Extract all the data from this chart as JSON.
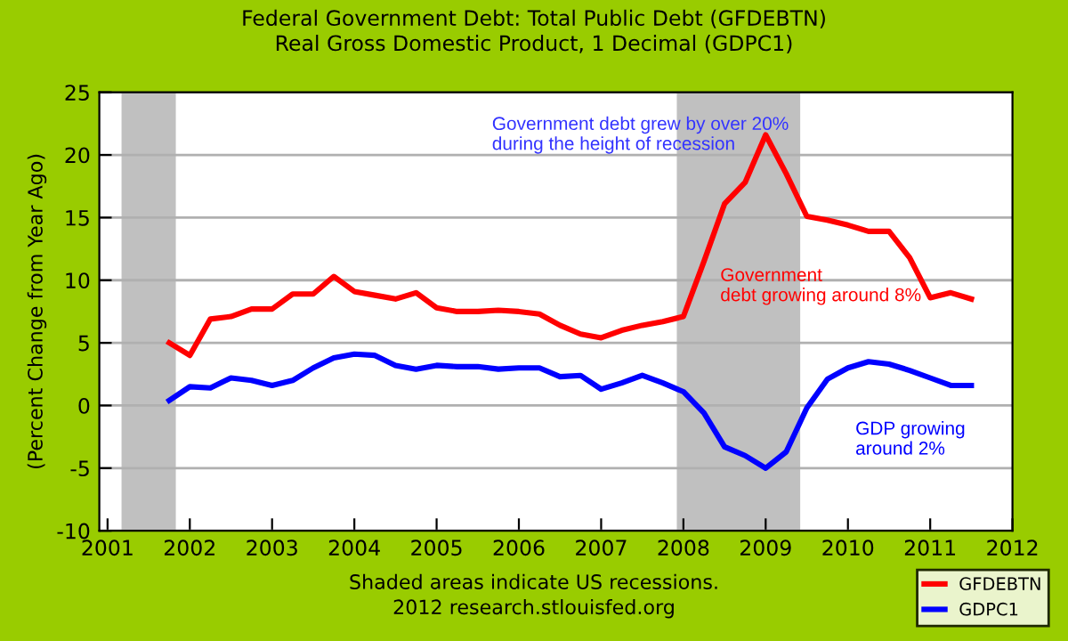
{
  "chart_data": {
    "type": "line",
    "title": "Federal Government Debt: Total Public Debt (GFDEBTN)\nReal Gross Domestic Product, 1 Decimal (GDPC1)",
    "ylabel": "(Percent Change from Year Ago)",
    "x": [
      2001.75,
      2002.0,
      2002.25,
      2002.5,
      2002.75,
      2003.0,
      2003.25,
      2003.5,
      2003.75,
      2004.0,
      2004.25,
      2004.5,
      2004.75,
      2005.0,
      2005.25,
      2005.5,
      2005.75,
      2006.0,
      2006.25,
      2006.5,
      2006.75,
      2007.0,
      2007.25,
      2007.5,
      2007.75,
      2008.0,
      2008.25,
      2008.5,
      2008.75,
      2009.0,
      2009.25,
      2009.5,
      2009.75,
      2010.0,
      2010.25,
      2010.5,
      2010.75,
      2011.0,
      2011.25,
      2011.5
    ],
    "series": [
      {
        "name": "GFDEBTN",
        "color": "#ff0000",
        "values": [
          5.0,
          4.0,
          6.9,
          7.1,
          7.7,
          7.7,
          8.9,
          8.9,
          10.3,
          9.1,
          8.8,
          8.5,
          9.0,
          7.8,
          7.5,
          7.5,
          7.6,
          7.5,
          7.3,
          6.4,
          5.7,
          5.4,
          6.0,
          6.4,
          6.7,
          7.1,
          11.5,
          16.1,
          17.8,
          21.6,
          18.5,
          15.1,
          14.8,
          14.4,
          13.9,
          13.9,
          11.8,
          8.6,
          9.0,
          8.5
        ]
      },
      {
        "name": "GDPC1",
        "color": "#0000ff",
        "values": [
          0.4,
          1.5,
          1.4,
          2.2,
          2.0,
          1.6,
          2.0,
          3.0,
          3.8,
          4.1,
          4.0,
          3.2,
          2.9,
          3.2,
          3.1,
          3.1,
          2.9,
          3.0,
          3.0,
          2.3,
          2.4,
          1.3,
          1.8,
          2.4,
          1.8,
          1.1,
          -0.6,
          -3.3,
          -4.0,
          -5.0,
          -3.7,
          -0.2,
          2.1,
          3.0,
          3.5,
          3.3,
          2.8,
          2.2,
          1.6,
          1.6
        ]
      }
    ],
    "xlim": [
      2000.9,
      2012
    ],
    "xticks": [
      2001,
      2002,
      2003,
      2004,
      2005,
      2006,
      2007,
      2008,
      2009,
      2010,
      2011,
      2012
    ],
    "ylim": [
      -10,
      25
    ],
    "yticks": [
      -10,
      -5,
      0,
      5,
      10,
      15,
      20,
      25
    ],
    "bands": [
      {
        "axis": "x",
        "from": 2001.17,
        "to": 2001.83,
        "color": "#c0c0c0"
      },
      {
        "axis": "x",
        "from": 2007.92,
        "to": 2009.42,
        "color": "#c0c0c0"
      }
    ],
    "annotations": [
      "Government debt grew by over 20%\nduring the height of recession",
      "Government\ndebt growing around 8%",
      "GDP growing\naround 2%",
      "Shaded areas indicate US recessions.\n2012 research.stlouisfed.org"
    ],
    "grid": "y",
    "legend": "bottom right",
    "marker": "none",
    "line_style": "solid"
  }
}
